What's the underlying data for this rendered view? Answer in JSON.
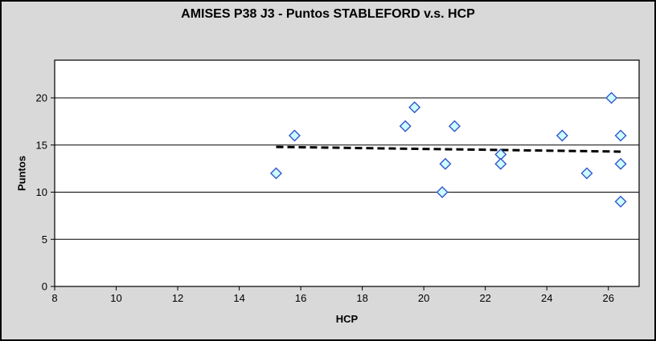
{
  "title": "AMISES P38 J3 - Puntos STABLEFORD v.s. HCP",
  "colors": {
    "background": "#D9D9D9",
    "plot_background": "#FFFFFF",
    "axis": "#000000",
    "gridline": "#000000",
    "text": "#000000",
    "marker_fill": "#CCFFFF",
    "marker_border": "#3355CC",
    "trendline": "#000000"
  },
  "chart_data": {
    "type": "scatter",
    "title": "AMISES P38 J3 - Puntos STABLEFORD v.s. HCP",
    "xlabel": "HCP",
    "ylabel": "Puntos",
    "xlim": [
      8,
      27
    ],
    "ylim": [
      0,
      24
    ],
    "x_ticks": [
      8,
      10,
      12,
      14,
      16,
      18,
      20,
      22,
      24,
      26
    ],
    "y_ticks": [
      0,
      5,
      10,
      15,
      20
    ],
    "grid": "horizontal",
    "legend": "none",
    "marker": "diamond",
    "points": [
      {
        "x": 15.2,
        "y": 12
      },
      {
        "x": 15.8,
        "y": 16
      },
      {
        "x": 19.4,
        "y": 17
      },
      {
        "x": 19.7,
        "y": 19
      },
      {
        "x": 20.6,
        "y": 10
      },
      {
        "x": 20.7,
        "y": 13
      },
      {
        "x": 21.0,
        "y": 17
      },
      {
        "x": 22.5,
        "y": 14
      },
      {
        "x": 22.5,
        "y": 13
      },
      {
        "x": 24.5,
        "y": 16
      },
      {
        "x": 25.3,
        "y": 12
      },
      {
        "x": 26.1,
        "y": 20
      },
      {
        "x": 26.4,
        "y": 16
      },
      {
        "x": 26.4,
        "y": 13
      },
      {
        "x": 26.4,
        "y": 9
      }
    ],
    "trendline": {
      "style": "dashed",
      "x_start": 15.2,
      "y_start": 14.8,
      "x_end": 26.4,
      "y_end": 14.3
    }
  }
}
